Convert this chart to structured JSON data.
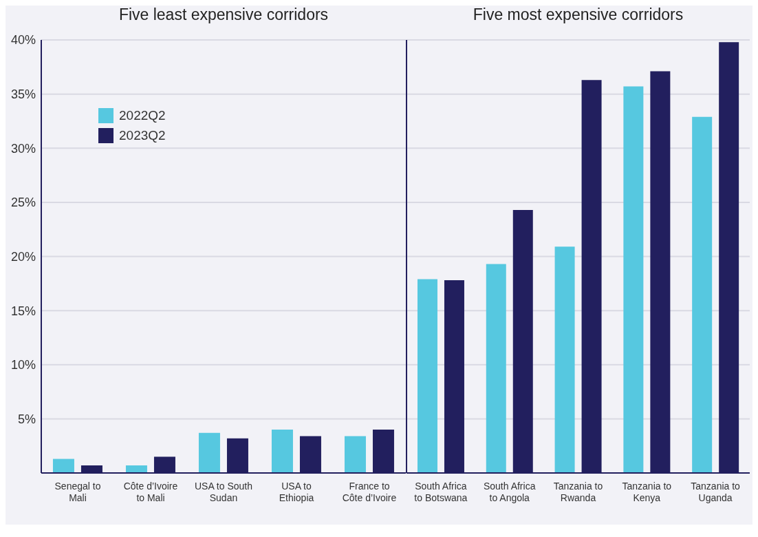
{
  "chart_data": [
    {
      "type": "bar",
      "title": "Five least expensive corridors",
      "categories": [
        "Senegal to Mali",
        "Côte d’Ivoire to Mali",
        "USA to South Sudan",
        "USA to Ethiopia",
        "France to Côte d’Ivoire"
      ],
      "series": [
        {
          "name": "2022Q2",
          "color": "#56c8e0",
          "values": [
            1.3,
            0.7,
            3.7,
            4.0,
            3.4
          ]
        },
        {
          "name": "2023Q2",
          "color": "#221f5e",
          "values": [
            0.7,
            1.5,
            3.2,
            3.4,
            4.0
          ]
        }
      ],
      "ylim": [
        0,
        40
      ],
      "yticks": [
        {
          "value": 5,
          "label": "5%"
        },
        {
          "value": 10,
          "label": "10%"
        },
        {
          "value": 15,
          "label": "15%"
        },
        {
          "value": 20,
          "label": "20%"
        },
        {
          "value": 25,
          "label": "25%"
        },
        {
          "value": 30,
          "label": "30%"
        },
        {
          "value": 35,
          "label": "35%"
        },
        {
          "value": 40,
          "label": "40%"
        }
      ],
      "grid": "y",
      "legend": "top left"
    },
    {
      "type": "bar",
      "title": "Five most expensive corridors",
      "categories": [
        "South Africa to Botswana",
        "South Africa to Angola",
        "Tanzania to Rwanda",
        "Tanzania to Kenya",
        "Tanzania to Uganda"
      ],
      "series": [
        {
          "color": "#56c8e0",
          "values": [
            17.9,
            19.3,
            20.9,
            35.7,
            32.9
          ]
        },
        {
          "color": "#221f5e",
          "values": [
            17.8,
            24.3,
            36.3,
            37.1,
            39.8
          ]
        }
      ],
      "ylim": [
        0,
        40
      ],
      "yticks": [
        5,
        10,
        15,
        20,
        25,
        30,
        35,
        40
      ],
      "grid": "y",
      "tick_labels": "x"
    }
  ]
}
